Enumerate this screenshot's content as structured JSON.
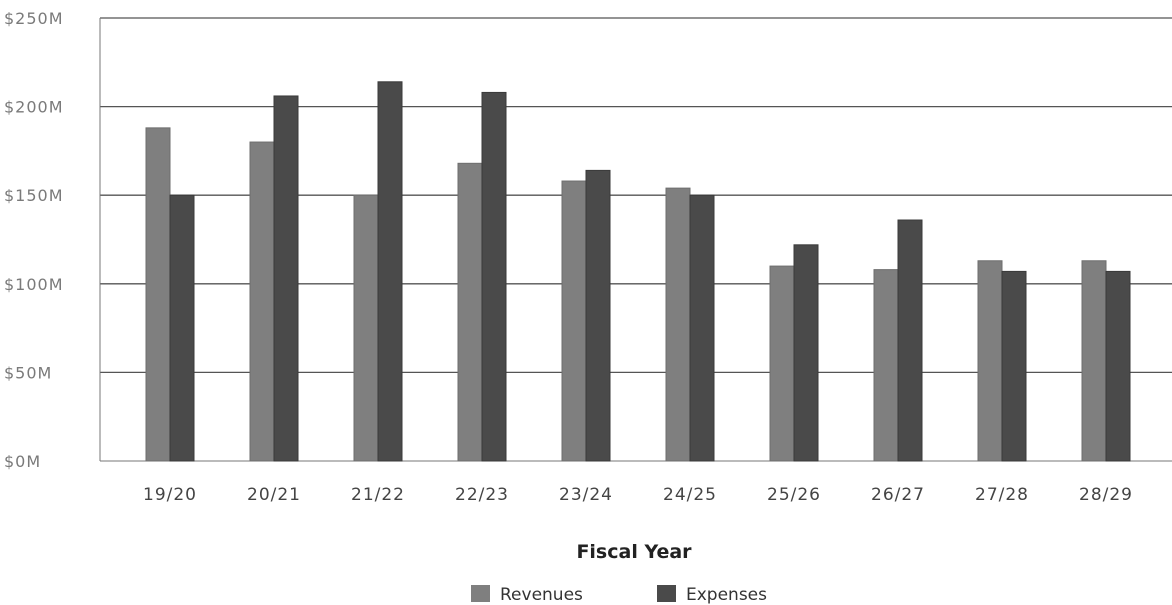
{
  "chart_data": {
    "type": "bar",
    "title": "",
    "xlabel": "Fiscal Year",
    "ylabel": "",
    "ylim": [
      0,
      250
    ],
    "y_ticks": [
      "$0M",
      "$50M",
      "$100M",
      "$150M",
      "$200M",
      "$250M"
    ],
    "y_tick_values": [
      0,
      50,
      100,
      150,
      200,
      250
    ],
    "categories": [
      "19/20",
      "20/21",
      "21/22",
      "22/23",
      "23/24",
      "24/25",
      "25/26",
      "26/27",
      "27/28",
      "28/29"
    ],
    "series": [
      {
        "name": "Revenues",
        "color": "#7f7f7f",
        "values": [
          188,
          180,
          150,
          168,
          158,
          154,
          110,
          108,
          113,
          113
        ]
      },
      {
        "name": "Expenses",
        "color": "#4a4a4a",
        "values": [
          150,
          206,
          214,
          208,
          164,
          150,
          122,
          136,
          107,
          107
        ]
      }
    ],
    "grid": true,
    "legend_position": "bottom-center"
  }
}
